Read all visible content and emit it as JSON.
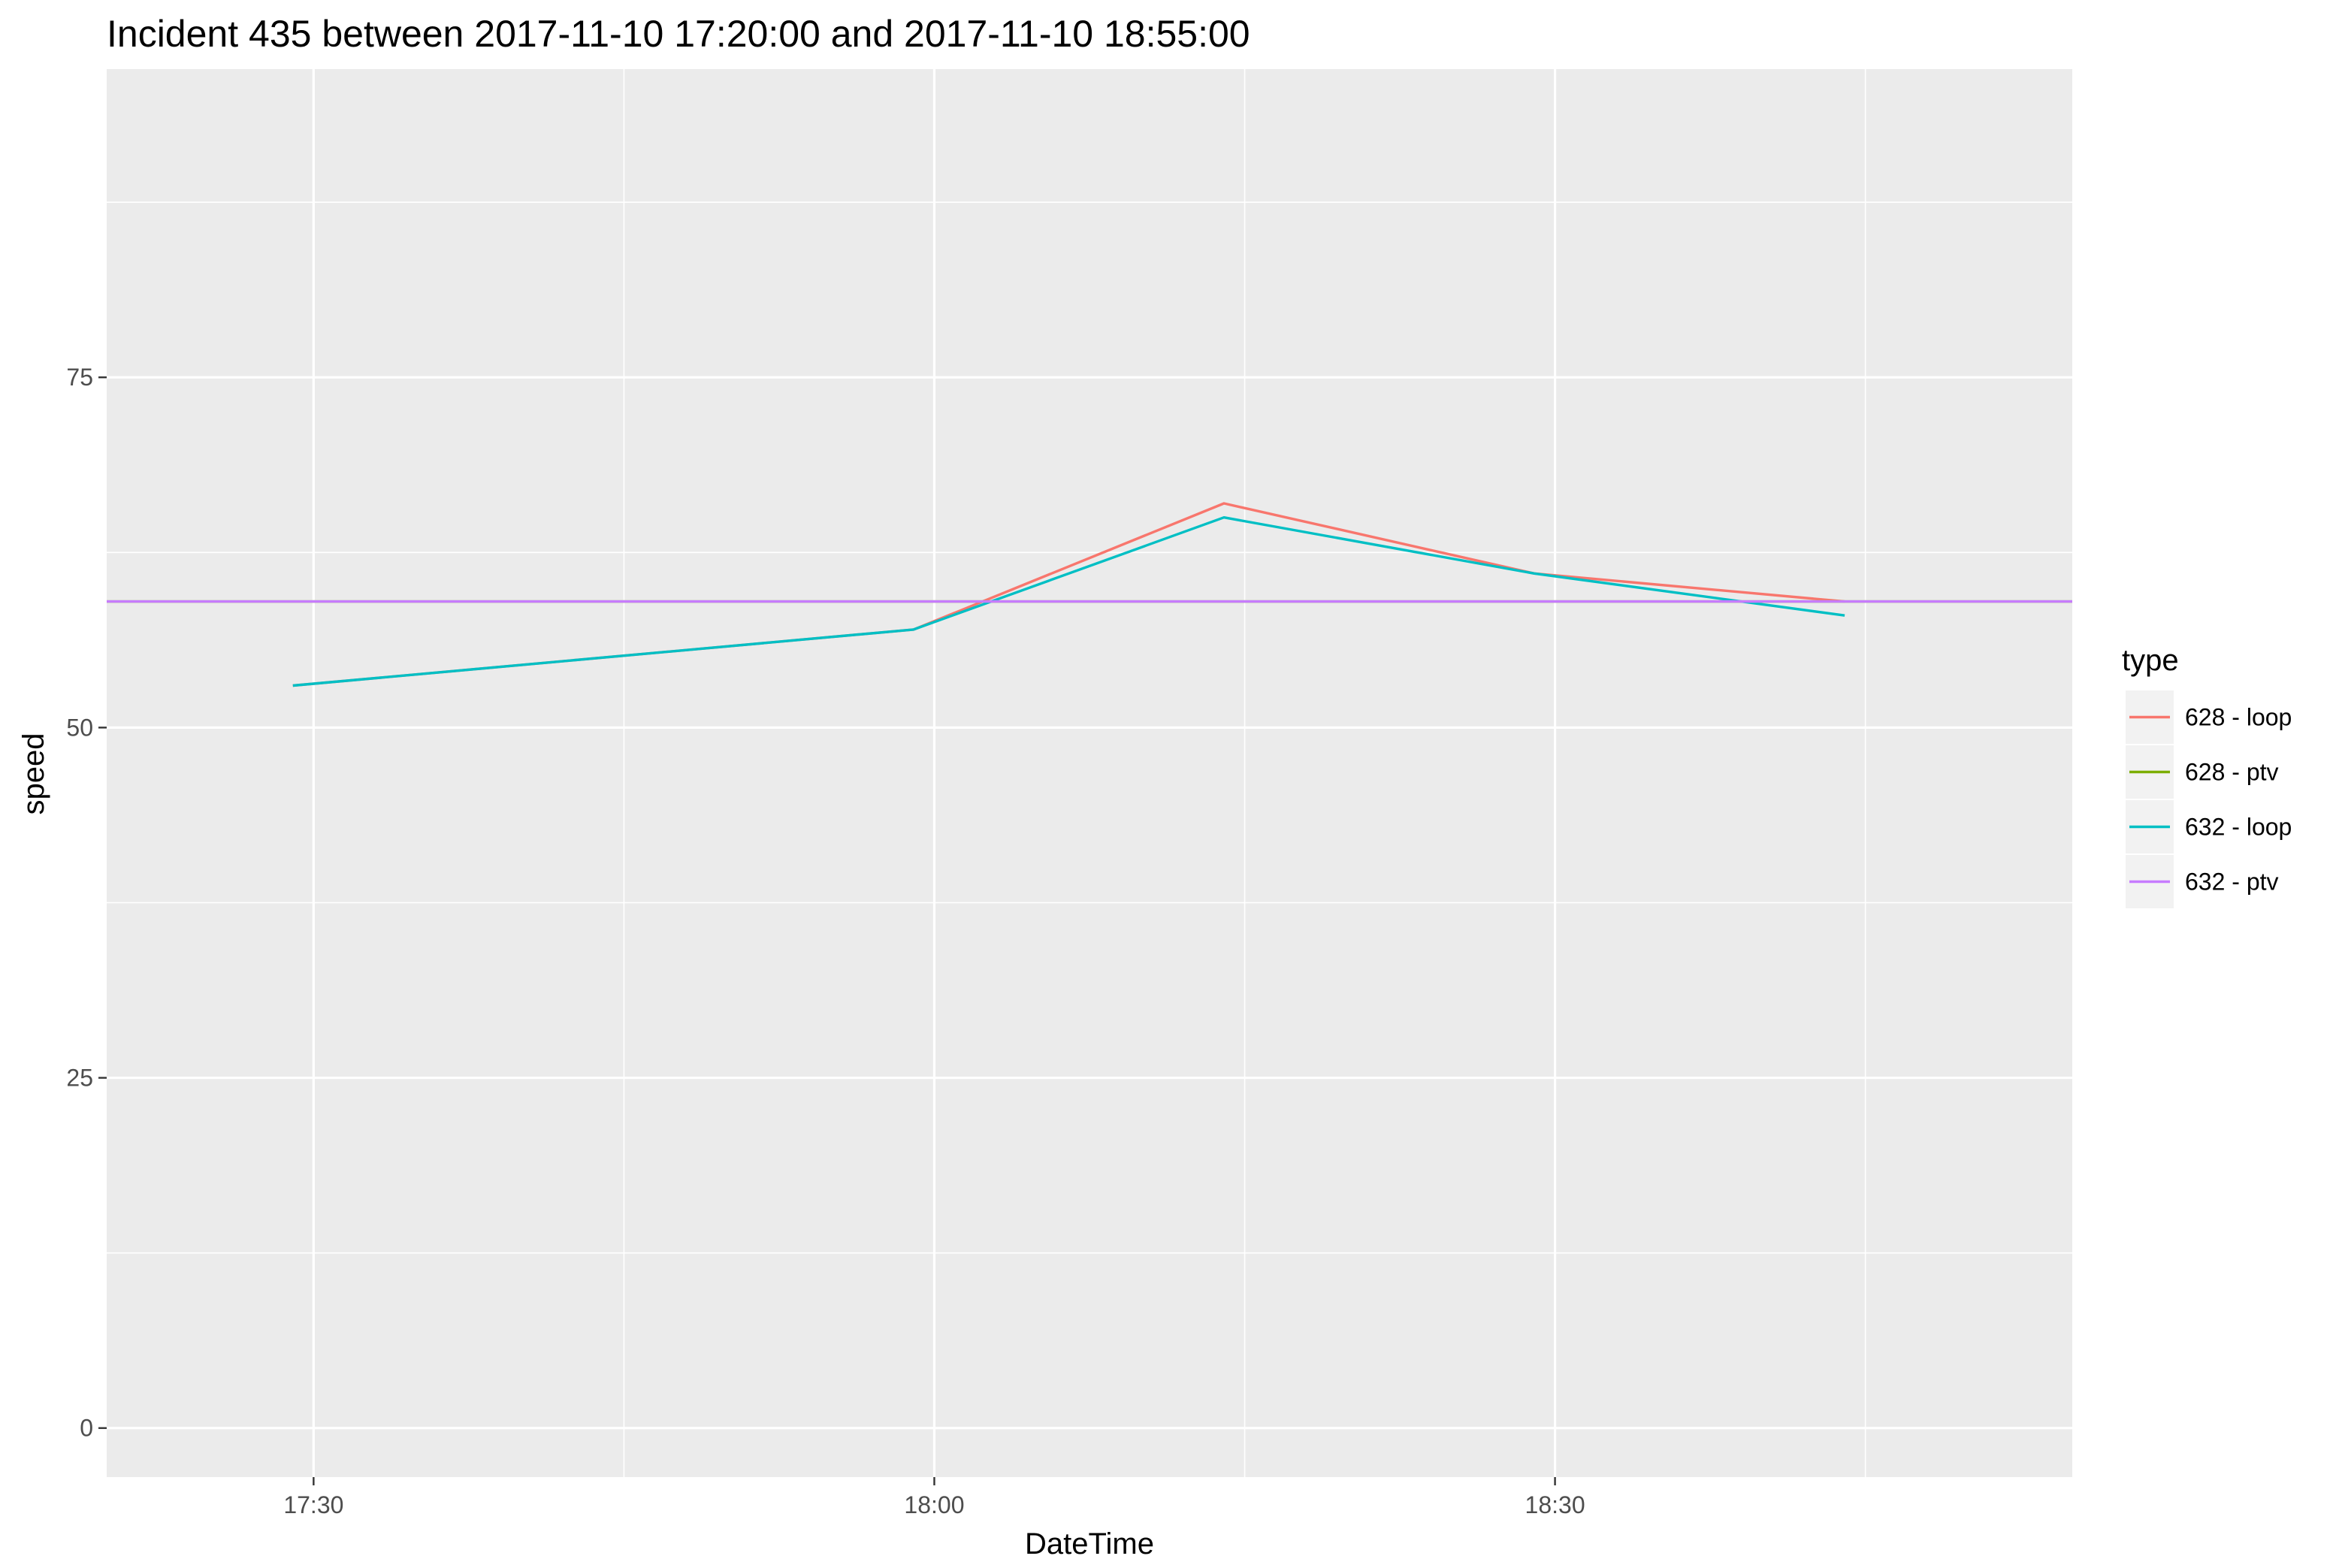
{
  "chart_data": {
    "type": "line",
    "title": "Incident 435 between 2017-11-10 17:20:00 and 2017-11-10 18:55:00",
    "xlabel": "DateTime",
    "ylabel": "speed",
    "xlim": [
      "17:20",
      "18:55"
    ],
    "ylim": [
      -3.5,
      97
    ],
    "x_ticks": [
      "17:30",
      "18:00",
      "18:30"
    ],
    "x_minor_ticks": [
      "17:45",
      "18:15",
      "18:45"
    ],
    "y_ticks": [
      0,
      25,
      50,
      75
    ],
    "y_minor_ticks": [
      12.5,
      37.5,
      62.5,
      87.5
    ],
    "grid": true,
    "legend": {
      "title": "type",
      "position": "right"
    },
    "series": [
      {
        "name": "628 - loop",
        "color": "#F8766D",
        "points": [
          [
            "17:29",
            53
          ],
          [
            "17:59",
            57
          ],
          [
            "18:14",
            66
          ],
          [
            "18:29",
            61
          ],
          [
            "18:44",
            59
          ]
        ]
      },
      {
        "name": "628 - ptv",
        "color": "#7CAE00",
        "points": [
          [
            "17:20",
            59
          ],
          [
            "18:55",
            59
          ]
        ]
      },
      {
        "name": "632 - loop",
        "color": "#00BFC4",
        "points": [
          [
            "17:29",
            53
          ],
          [
            "17:59",
            57
          ],
          [
            "18:14",
            65
          ],
          [
            "18:29",
            61
          ],
          [
            "18:44",
            58
          ]
        ]
      },
      {
        "name": "632 - ptv",
        "color": "#C77CFF",
        "points": [
          [
            "17:20",
            59
          ],
          [
            "18:55",
            59
          ]
        ]
      }
    ]
  }
}
